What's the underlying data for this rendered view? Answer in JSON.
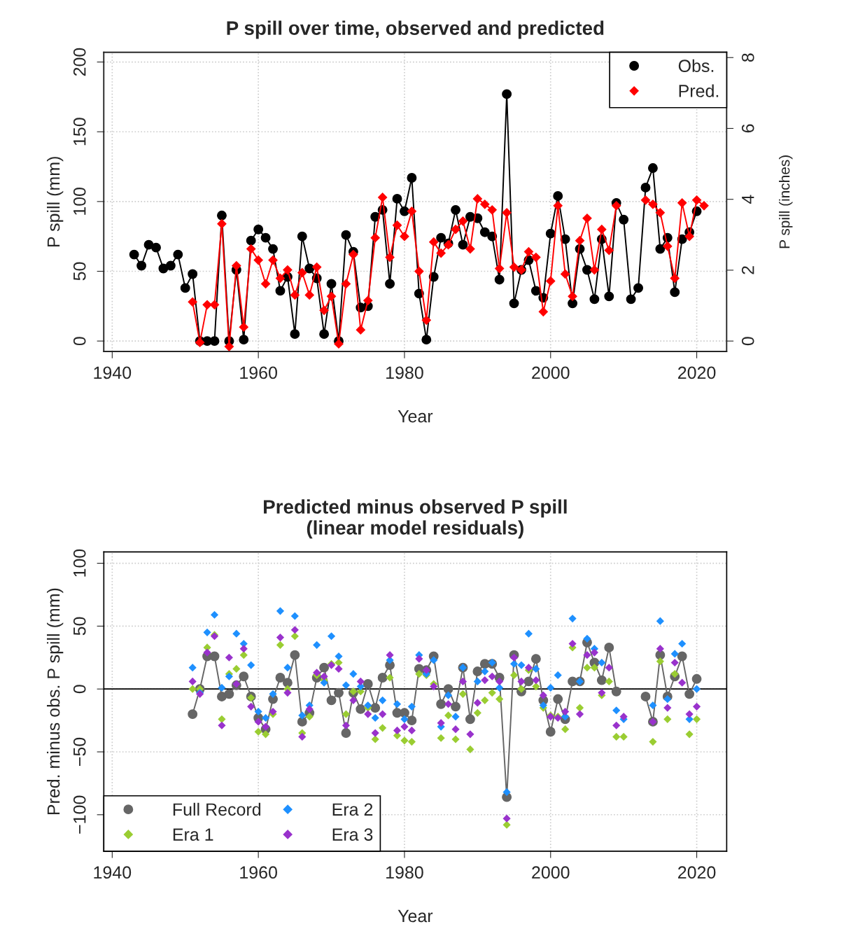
{
  "chart_data": [
    {
      "type": "line",
      "title": "P spill over time, observed and predicted",
      "xlabel": "Year",
      "ylabel": "P spill (mm)",
      "y2label": "P spill (inches)",
      "x": [
        1943,
        1944,
        1945,
        1946,
        1947,
        1948,
        1949,
        1950,
        1951,
        1952,
        1953,
        1954,
        1955,
        1956,
        1957,
        1958,
        1959,
        1960,
        1961,
        1962,
        1963,
        1964,
        1965,
        1966,
        1967,
        1968,
        1969,
        1970,
        1971,
        1972,
        1973,
        1974,
        1975,
        1976,
        1977,
        1978,
        1979,
        1980,
        1981,
        1982,
        1983,
        1984,
        1985,
        1986,
        1987,
        1988,
        1989,
        1990,
        1991,
        1992,
        1993,
        1994,
        1995,
        1996,
        1997,
        1998,
        1999,
        2000,
        2001,
        2002,
        2003,
        2004,
        2005,
        2006,
        2007,
        2008,
        2009,
        2010,
        2011,
        2012,
        2013,
        2014,
        2015,
        2016,
        2017,
        2018,
        2019,
        2020,
        2021
      ],
      "series": [
        {
          "name": "Obs.",
          "marker": "circle",
          "color": "#000000",
          "values": [
            62,
            54,
            69,
            67,
            52,
            54,
            62,
            38,
            48,
            0,
            0,
            0,
            90,
            0,
            51,
            1,
            72,
            80,
            74,
            66,
            36,
            46,
            5,
            75,
            52,
            45,
            5,
            41,
            0,
            76,
            64,
            24,
            25,
            89,
            94,
            41,
            102,
            93,
            117,
            34,
            1,
            46,
            74,
            70,
            94,
            69,
            89,
            88,
            78,
            75,
            44,
            177,
            27,
            51,
            58,
            36,
            31,
            77,
            104,
            73,
            27,
            66,
            51,
            30,
            73,
            32,
            99,
            87,
            30,
            38,
            110,
            124,
            66,
            74,
            35,
            73,
            78,
            93,
            null
          ]
        },
        {
          "name": "Pred.",
          "marker": "diamond",
          "color": "#ff0000",
          "values": [
            null,
            null,
            null,
            null,
            null,
            null,
            null,
            null,
            28,
            -1,
            26,
            26,
            84,
            -4,
            54,
            10,
            66,
            58,
            41,
            58,
            45,
            51,
            33,
            49,
            33,
            53,
            22,
            32,
            -2,
            41,
            62,
            8,
            29,
            74,
            103,
            60,
            83,
            75,
            93,
            50,
            15,
            71,
            63,
            69,
            80,
            86,
            66,
            102,
            98,
            94,
            52,
            92,
            53,
            51,
            64,
            60,
            21,
            43,
            97,
            48,
            32,
            72,
            88,
            51,
            80,
            65,
            97,
            null,
            null,
            null,
            101,
            98,
            92,
            68,
            45,
            99,
            75,
            101,
            97
          ]
        }
      ],
      "xlim": [
        1938.85,
        2024.1
      ],
      "xticks": [
        1940,
        1960,
        1980,
        2000,
        2020
      ],
      "ylim": [
        -7.5,
        207
      ],
      "yticks": [
        0,
        50,
        100,
        150,
        200
      ],
      "y2lim": [
        -0.295,
        8.15
      ],
      "y2ticks": [
        0,
        2,
        4,
        6,
        8
      ],
      "grid": true,
      "legend": "top right"
    },
    {
      "type": "line",
      "title": "Predicted minus observed P spill\n(linear model residuals)",
      "xlabel": "Year",
      "ylabel": "Pred. minus obs. P spill (mm)",
      "x": [
        1951,
        1952,
        1953,
        1954,
        1955,
        1956,
        1957,
        1958,
        1959,
        1960,
        1961,
        1962,
        1963,
        1964,
        1965,
        1966,
        1967,
        1968,
        1969,
        1970,
        1971,
        1972,
        1973,
        1974,
        1975,
        1976,
        1977,
        1978,
        1979,
        1980,
        1981,
        1982,
        1983,
        1984,
        1985,
        1986,
        1987,
        1988,
        1989,
        1990,
        1991,
        1992,
        1993,
        1994,
        1995,
        1996,
        1997,
        1998,
        1999,
        2000,
        2001,
        2002,
        2003,
        2004,
        2005,
        2006,
        2007,
        2008,
        2009,
        2010,
        2011,
        2012,
        2013,
        2014,
        2015,
        2016,
        2017,
        2018,
        2019,
        2020
      ],
      "series": [
        {
          "name": "Full Record",
          "marker": "circle",
          "color": "#666666",
          "values": [
            -20,
            0,
            26,
            26,
            -6,
            -4,
            3,
            10,
            -6,
            -23,
            -32,
            -8,
            9,
            5,
            27,
            -26,
            -19,
            9,
            17,
            -9,
            -3,
            -35,
            -3,
            -16,
            4,
            -15,
            9,
            19,
            -19,
            -19,
            -25,
            16,
            15,
            26,
            -12,
            0,
            -14,
            17,
            -24,
            14,
            20,
            20,
            9,
            -86,
            27,
            -2,
            6,
            24,
            -9,
            -34,
            -8,
            -24,
            6,
            6,
            37,
            21,
            7,
            33,
            -2,
            null,
            null,
            null,
            -6,
            -26,
            27,
            -6,
            10,
            26,
            -4,
            8
          ]
        },
        {
          "name": "Era 1",
          "type": "scatter",
          "marker": "diamond",
          "color": "#9acd32",
          "values": [
            0,
            0,
            33,
            43,
            -24,
            12,
            16,
            27,
            -7,
            -34,
            -36,
            -20,
            35,
            0,
            42,
            -35,
            -22,
            11,
            7,
            20,
            21,
            -20,
            -2,
            -2,
            -15,
            -40,
            -31,
            9,
            -37,
            -41,
            -42,
            12,
            11,
            4,
            -39,
            -21,
            -40,
            -4,
            -48,
            -19,
            -9,
            -3,
            -8,
            -108,
            11,
            0,
            15,
            2,
            -15,
            -21,
            -22,
            -32,
            33,
            -15,
            17,
            17,
            -5,
            6,
            -38,
            -38,
            null,
            null,
            null,
            -42,
            22,
            -24,
            12,
            null,
            -36,
            -24
          ]
        },
        {
          "name": "Era 2",
          "type": "scatter",
          "marker": "diamond",
          "color": "#1e90ff",
          "values": [
            17,
            -3,
            45,
            59,
            1,
            10,
            44,
            36,
            19,
            -18,
            -23,
            -4,
            62,
            17,
            58,
            -21,
            -13,
            35,
            5,
            42,
            26,
            3,
            12,
            2,
            -13,
            -23,
            -9,
            23,
            -12,
            -24,
            -14,
            27,
            12,
            23,
            -30,
            -5,
            -22,
            17,
            null,
            6,
            14,
            21,
            1,
            -82,
            20,
            19,
            44,
            16,
            -13,
            1,
            11,
            -22,
            56,
            6,
            40,
            32,
            21,
            null,
            -17,
            -24,
            null,
            null,
            null,
            -13,
            54,
            -8,
            28,
            36,
            -24,
            0
          ]
        },
        {
          "name": "Era 3",
          "type": "scatter",
          "marker": "diamond",
          "color": "#9932cc",
          "values": [
            6,
            -4,
            29,
            42,
            -29,
            25,
            4,
            32,
            -14,
            -26,
            -30,
            -18,
            41,
            -3,
            47,
            -38,
            -16,
            13,
            10,
            19,
            16,
            -29,
            -9,
            6,
            -20,
            -35,
            -20,
            27,
            -33,
            -30,
            -33,
            24,
            15,
            2,
            -27,
            -12,
            -32,
            6,
            -36,
            -11,
            7,
            10,
            6,
            -103,
            25,
            6,
            17,
            7,
            -5,
            -22,
            -23,
            -18,
            36,
            -20,
            27,
            29,
            -3,
            17,
            -29,
            -22,
            null,
            null,
            null,
            -26,
            32,
            -15,
            21,
            5,
            -20,
            -14
          ]
        }
      ],
      "ref_lines": [
        {
          "axis": "y",
          "value": 0,
          "color": "#000000",
          "line_style": "solid"
        }
      ],
      "xlim": [
        1938.85,
        2024.1
      ],
      "xticks": [
        1940,
        1960,
        1980,
        2000,
        2020
      ],
      "ylim": [
        -129,
        109
      ],
      "yticks": [
        {
          "value": -100,
          "label": "−100"
        },
        {
          "value": -50,
          "label": "−50"
        },
        0,
        50,
        100
      ],
      "grid": true,
      "legend": "bottom left"
    }
  ]
}
